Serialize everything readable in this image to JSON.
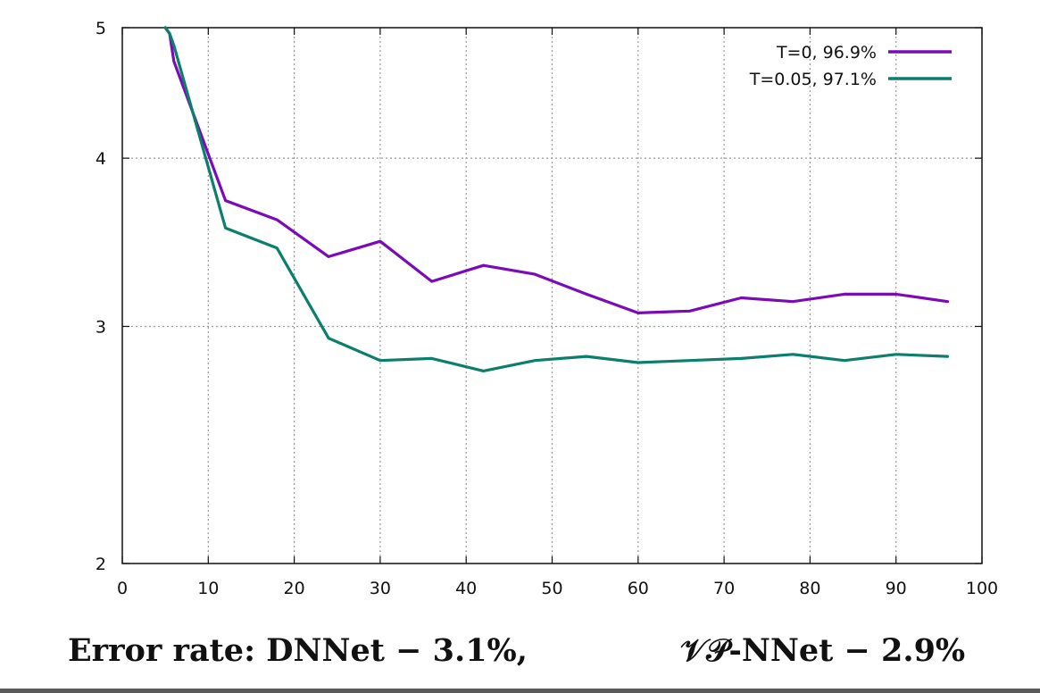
{
  "chart_data": {
    "type": "line",
    "xlim": [
      0,
      100
    ],
    "ylim": [
      2,
      5
    ],
    "yscale": "log",
    "x_ticks": [
      0,
      10,
      20,
      30,
      40,
      50,
      60,
      70,
      80,
      90,
      100
    ],
    "y_ticks": [
      2,
      3,
      4,
      5
    ],
    "grid": true,
    "legend_position": "top-right",
    "series": [
      {
        "name": "T=0, 96.9%",
        "color": "#7b0ab8",
        "x": [
          5,
          5.5,
          6,
          12,
          18,
          24,
          30,
          36,
          42,
          48,
          54,
          60,
          66,
          72,
          78,
          84,
          90,
          96
        ],
        "y": [
          5.0,
          4.95,
          4.72,
          3.72,
          3.6,
          3.38,
          3.47,
          3.24,
          3.33,
          3.28,
          3.17,
          3.07,
          3.08,
          3.15,
          3.13,
          3.17,
          3.17,
          3.13
        ]
      },
      {
        "name": "T=0.05, 97.1%",
        "color": "#0b7f6b",
        "x": [
          5,
          5.5,
          6,
          12,
          18,
          24,
          30,
          36,
          42,
          48,
          54,
          60,
          66,
          72,
          78,
          84,
          90,
          96
        ],
        "y": [
          5.0,
          4.95,
          4.85,
          3.55,
          3.43,
          2.94,
          2.83,
          2.84,
          2.78,
          2.83,
          2.85,
          2.82,
          2.83,
          2.84,
          2.86,
          2.83,
          2.86,
          2.85
        ]
      }
    ]
  },
  "caption": {
    "left": "Error rate:  DNNet − 3.1%,",
    "right": "𝒱𝒫-NNet − 2.9%"
  }
}
